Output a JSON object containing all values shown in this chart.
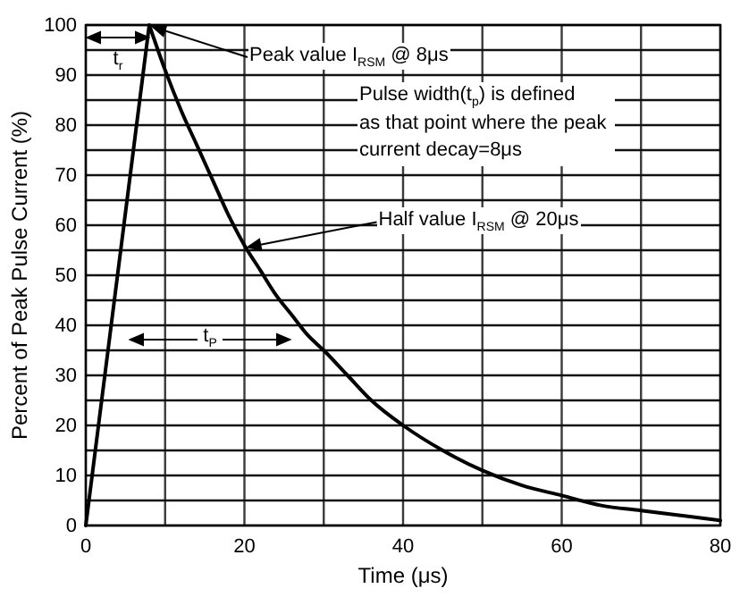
{
  "chart_data": {
    "type": "line",
    "xlabel": "Time (μs)",
    "ylabel": "Percent of Peak Pulse Current (%)",
    "x": [
      0,
      8,
      10,
      12,
      14,
      16,
      18,
      20,
      22,
      24,
      26,
      28,
      30,
      33,
      36,
      40,
      45,
      50,
      55,
      60,
      65,
      70,
      75,
      80
    ],
    "series": [
      {
        "color": "#000000",
        "values": [
          0,
          100,
          91,
          83,
          76,
          69,
          62,
          56,
          51,
          46,
          42,
          38,
          35,
          30,
          25,
          20,
          15,
          11,
          8,
          6,
          4,
          3,
          2,
          1
        ]
      }
    ],
    "xlim": [
      0,
      80
    ],
    "ylim": [
      0,
      100
    ],
    "xticks": [
      0,
      {
        "value": 10,
        "label": null
      },
      20,
      {
        "value": 30,
        "label": null
      },
      40,
      {
        "value": 50,
        "label": null
      },
      60,
      {
        "value": 70,
        "label": null
      },
      80
    ],
    "yticks": [
      0,
      {
        "value": 5,
        "label": null
      },
      10,
      {
        "value": 15,
        "label": null
      },
      20,
      {
        "value": 25,
        "label": null
      },
      30,
      {
        "value": 35,
        "label": null
      },
      40,
      {
        "value": 45,
        "label": null
      },
      50,
      {
        "value": 55,
        "label": null
      },
      60,
      {
        "value": 65,
        "label": null
      },
      70,
      {
        "value": 75,
        "label": null
      },
      80,
      {
        "value": 85,
        "label": null
      },
      90,
      {
        "value": 95,
        "label": null
      },
      100
    ],
    "grid": true,
    "annotations": [
      "t$_{r}$",
      {
        "text": "Peak value I$_{RSM}$ @ 8μs",
        "x": 8,
        "y": 100
      },
      "Pulse width(t$_{p}$) is defined as that point where the peak current decay=8μs",
      {
        "text": "Half  value I$_{RSM}$ @ 20μs",
        "x": 20,
        "y": 56
      },
      "t$_{P}$"
    ]
  }
}
